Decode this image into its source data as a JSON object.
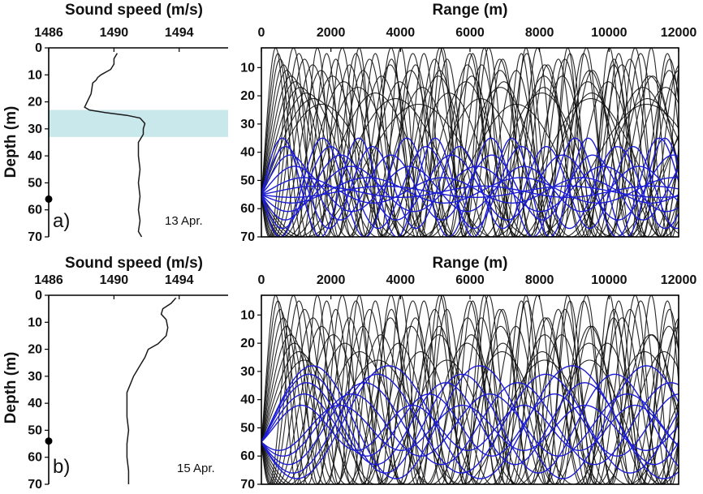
{
  "colors": {
    "profile": "#1a1a1a",
    "highlight": "#c9e8ec",
    "ray_black": "#111111",
    "ray_blue": "#1c1cd6",
    "source": "#000000"
  },
  "chart_data": [
    {
      "type": "line",
      "panel": "a",
      "xlabel": "Sound speed (m/s)",
      "ylabel": "Depth (m)",
      "xlim": [
        1486,
        1497
      ],
      "ylim": [
        0,
        70
      ],
      "y_inverted": true,
      "xticks": [
        1486,
        1490,
        1494
      ],
      "yticks": [
        0,
        10,
        20,
        30,
        40,
        50,
        60,
        70
      ],
      "panel_label": "a)",
      "date_label": "13 Apr.",
      "highlight_band": [
        23,
        33
      ],
      "source_depth": 56,
      "profile": {
        "x": [
          1490.2,
          1490.0,
          1490.0,
          1489.8,
          1489.2,
          1489.0,
          1488.9,
          1488.7,
          1488.6,
          1488.2,
          1488.5,
          1489.5,
          1490.8,
          1491.6,
          1491.9,
          1491.8,
          1491.8,
          1491.6,
          1491.5,
          1491.5,
          1491.6,
          1491.5,
          1491.6,
          1491.5,
          1491.6,
          1491.5,
          1491.7
        ],
        "y": [
          2,
          4,
          6,
          8,
          10,
          11,
          12,
          13,
          17,
          22,
          23,
          24,
          25,
          26,
          28,
          30,
          32,
          34,
          35,
          40,
          45,
          50,
          55,
          60,
          64,
          68,
          70
        ]
      }
    },
    {
      "type": "line",
      "panel": "a",
      "xlabel": "Range (m)",
      "xlim": [
        0,
        12000
      ],
      "ylim": [
        3,
        70
      ],
      "y_inverted": true,
      "xticks": [
        0,
        2000,
        4000,
        6000,
        8000,
        10000,
        12000
      ],
      "yticks": [
        10,
        20,
        30,
        40,
        50,
        60,
        70
      ],
      "source_depth": 55,
      "rays": {
        "black_min_turning_depths": [
          3,
          5,
          7,
          9,
          11,
          13,
          15,
          17,
          19,
          21,
          23
        ],
        "black_max_depth": 70,
        "blue_upper_turning_depths": [
          35,
          38,
          41,
          45,
          49,
          52
        ],
        "blue_lower_turning_depths": [
          70,
          67,
          64,
          61,
          58,
          56
        ],
        "blue_half_periods_m": [
          1100,
          1250,
          1450,
          1650,
          2000,
          2400
        ]
      }
    },
    {
      "type": "line",
      "panel": "b",
      "xlabel": "Sound speed (m/s)",
      "ylabel": "Depth (m)",
      "xlim": [
        1486,
        1497
      ],
      "ylim": [
        0,
        70
      ],
      "y_inverted": true,
      "xticks": [
        1486,
        1490,
        1494
      ],
      "yticks": [
        0,
        10,
        20,
        30,
        40,
        50,
        60,
        70
      ],
      "panel_label": "b)",
      "date_label": "15 Apr.",
      "source_depth": 54,
      "profile": {
        "x": [
          1493.8,
          1493.5,
          1493.0,
          1492.9,
          1493.2,
          1493.3,
          1493.2,
          1492.7,
          1492.1,
          1491.9,
          1491.6,
          1491.4,
          1491.2,
          1491.0,
          1490.8,
          1490.8,
          1490.8,
          1490.9,
          1490.8,
          1490.8,
          1490.9,
          1490.9
        ],
        "y": [
          1,
          3,
          5,
          7,
          9,
          12,
          15,
          18,
          20,
          23,
          26,
          28,
          30,
          33,
          36,
          40,
          45,
          50,
          55,
          60,
          65,
          70
        ]
      }
    },
    {
      "type": "line",
      "panel": "b",
      "xlabel": "Range (m)",
      "xlim": [
        0,
        12000
      ],
      "ylim": [
        3,
        70
      ],
      "y_inverted": true,
      "xticks": [
        0,
        2000,
        4000,
        6000,
        8000,
        10000,
        12000
      ],
      "yticks": [
        10,
        20,
        30,
        40,
        50,
        60,
        70
      ],
      "source_depth": 55,
      "rays": {
        "black_min_turning_depths": [
          3,
          5,
          8,
          11,
          14,
          17,
          20,
          23,
          26
        ],
        "black_max_depth": 70,
        "blue_upper_turning_depths": [
          28,
          31,
          34,
          38,
          42
        ],
        "blue_lower_turning_depths": [
          68,
          66,
          63,
          60,
          58
        ],
        "blue_half_periods_m": [
          2400,
          2200,
          2000,
          1800,
          1600
        ]
      }
    }
  ]
}
